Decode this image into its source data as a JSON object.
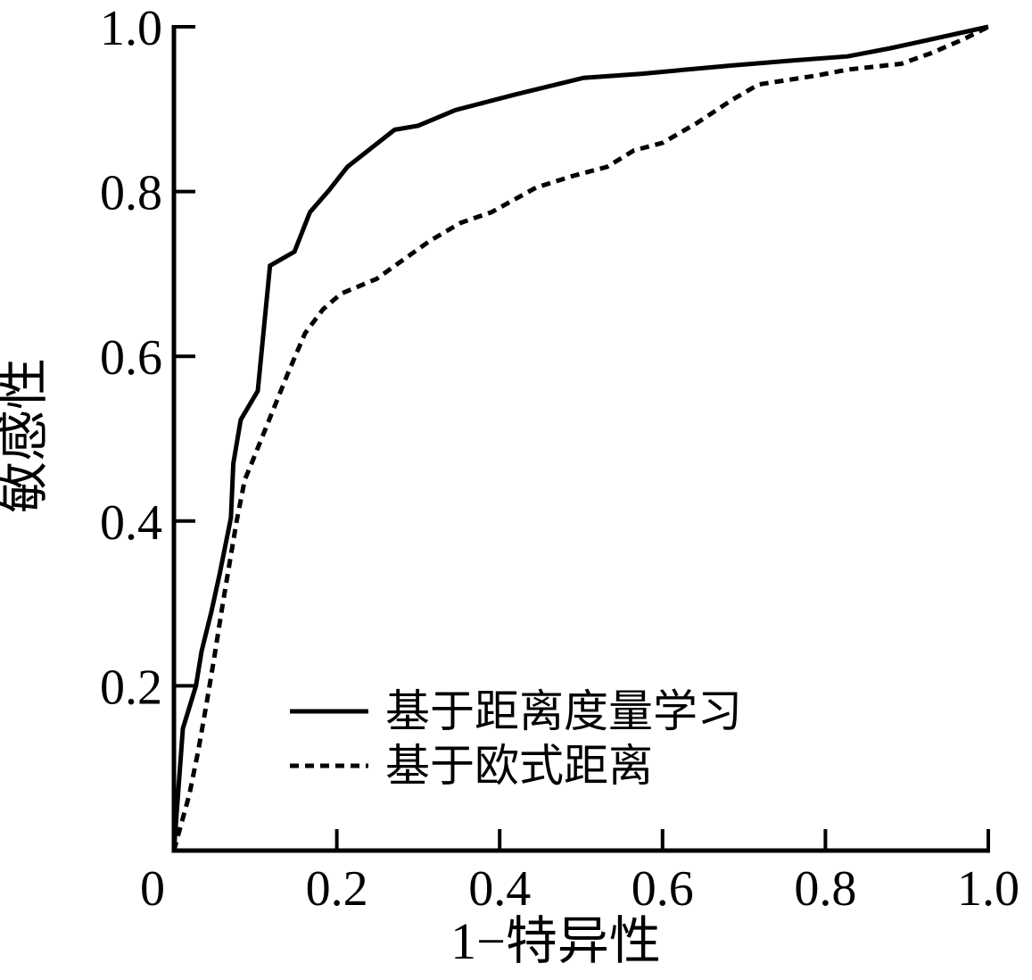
{
  "chart_data": {
    "type": "line",
    "title": "",
    "xlabel": "1−特异性",
    "ylabel": "敏感性",
    "xlim": [
      0,
      1
    ],
    "ylim": [
      0,
      1
    ],
    "grid": false,
    "legend_position": "inside lower-center",
    "axis_color": "#000000",
    "background_color": "#ffffff",
    "x_ticks": [
      {
        "value": 0,
        "label": "0"
      },
      {
        "value": 0.2,
        "label": "0.2"
      },
      {
        "value": 0.4,
        "label": "0.4"
      },
      {
        "value": 0.6,
        "label": "0.6"
      },
      {
        "value": 0.8,
        "label": "0.8"
      },
      {
        "value": 1.0,
        "label": "1.0"
      }
    ],
    "y_ticks": [
      {
        "value": 0.2,
        "label": "0.2"
      },
      {
        "value": 0.4,
        "label": "0.4"
      },
      {
        "value": 0.6,
        "label": "0.6"
      },
      {
        "value": 0.8,
        "label": "0.8"
      },
      {
        "value": 1.0,
        "label": "1.0"
      }
    ],
    "series": [
      {
        "name": "基于距离度量学习",
        "style": "solid",
        "color": "#000000",
        "points": [
          [
            0.0,
            0.0
          ],
          [
            0.011,
            0.148
          ],
          [
            0.027,
            0.2
          ],
          [
            0.034,
            0.242
          ],
          [
            0.046,
            0.29
          ],
          [
            0.056,
            0.335
          ],
          [
            0.07,
            0.404
          ],
          [
            0.073,
            0.47
          ],
          [
            0.082,
            0.523
          ],
          [
            0.103,
            0.558
          ],
          [
            0.118,
            0.71
          ],
          [
            0.148,
            0.727
          ],
          [
            0.167,
            0.775
          ],
          [
            0.19,
            0.801
          ],
          [
            0.213,
            0.83
          ],
          [
            0.271,
            0.875
          ],
          [
            0.3,
            0.88
          ],
          [
            0.346,
            0.899
          ],
          [
            0.42,
            0.918
          ],
          [
            0.503,
            0.938
          ],
          [
            0.575,
            0.943
          ],
          [
            0.65,
            0.95
          ],
          [
            0.685,
            0.953
          ],
          [
            0.76,
            0.959
          ],
          [
            0.827,
            0.964
          ],
          [
            0.88,
            0.974
          ],
          [
            1.0,
            1.0
          ]
        ]
      },
      {
        "name": "基于欧式距离",
        "style": "dashed",
        "color": "#000000",
        "points": [
          [
            0.0,
            0.0
          ],
          [
            0.019,
            0.068
          ],
          [
            0.03,
            0.122
          ],
          [
            0.04,
            0.178
          ],
          [
            0.049,
            0.231
          ],
          [
            0.06,
            0.3
          ],
          [
            0.077,
            0.4
          ],
          [
            0.087,
            0.45
          ],
          [
            0.095,
            0.469
          ],
          [
            0.117,
            0.523
          ],
          [
            0.139,
            0.577
          ],
          [
            0.161,
            0.628
          ],
          [
            0.183,
            0.657
          ],
          [
            0.205,
            0.676
          ],
          [
            0.249,
            0.694
          ],
          [
            0.273,
            0.711
          ],
          [
            0.314,
            0.74
          ],
          [
            0.352,
            0.762
          ],
          [
            0.39,
            0.775
          ],
          [
            0.445,
            0.805
          ],
          [
            0.49,
            0.819
          ],
          [
            0.532,
            0.83
          ],
          [
            0.565,
            0.85
          ],
          [
            0.6,
            0.859
          ],
          [
            0.642,
            0.883
          ],
          [
            0.685,
            0.911
          ],
          [
            0.718,
            0.93
          ],
          [
            0.751,
            0.935
          ],
          [
            0.79,
            0.941
          ],
          [
            0.827,
            0.948
          ],
          [
            0.893,
            0.955
          ],
          [
            0.93,
            0.968
          ],
          [
            0.97,
            0.985
          ],
          [
            1.0,
            1.0
          ]
        ]
      }
    ]
  }
}
